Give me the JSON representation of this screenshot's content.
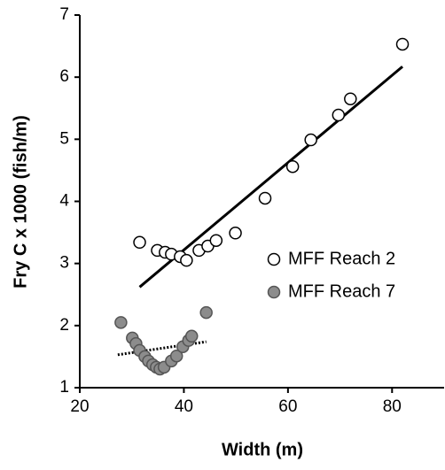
{
  "chart_data": {
    "type": "scatter",
    "x_label": "Width (m)",
    "y_label": "Fry C x 1000 (fish/m)",
    "xlim": [
      20,
      90
    ],
    "xticks": [
      20,
      40,
      60,
      80
    ],
    "ylim": [
      1,
      7
    ],
    "yticks": [
      1,
      2,
      3,
      4,
      5,
      6,
      7
    ],
    "legend": "right",
    "series": [
      {
        "name": "MFF Reach 2",
        "color": "#ffffff",
        "stroke": "#000000",
        "x": [
          31.5,
          34.9,
          36.4,
          37.6,
          39.3,
          40.5,
          42.9,
          44.6,
          46.2,
          49.9,
          55.6,
          60.9,
          64.4,
          69.7,
          72.0,
          82.0
        ],
        "values": [
          3.34,
          3.21,
          3.18,
          3.15,
          3.11,
          3.05,
          3.21,
          3.28,
          3.37,
          3.49,
          4.05,
          4.56,
          4.99,
          5.39,
          5.65,
          6.53
        ],
        "trend": {
          "x": [
            31.5,
            82.0
          ],
          "values": [
            2.62,
            6.17
          ],
          "style": "solid"
        }
      },
      {
        "name": "MFF Reach 7",
        "color": "#8c8c8c",
        "stroke": "#555555",
        "x": [
          27.9,
          30.1,
          30.8,
          31.5,
          32.5,
          33.2,
          34.0,
          34.7,
          35.4,
          36.2,
          37.6,
          38.6,
          39.8,
          40.9,
          41.5,
          44.3
        ],
        "values": [
          2.05,
          1.8,
          1.71,
          1.6,
          1.5,
          1.43,
          1.37,
          1.33,
          1.3,
          1.33,
          1.43,
          1.51,
          1.66,
          1.76,
          1.83,
          2.21
        ],
        "trend": {
          "x": [
            27.3,
            44.3
          ],
          "values": [
            1.53,
            1.74
          ],
          "style": "dotted"
        }
      }
    ]
  }
}
